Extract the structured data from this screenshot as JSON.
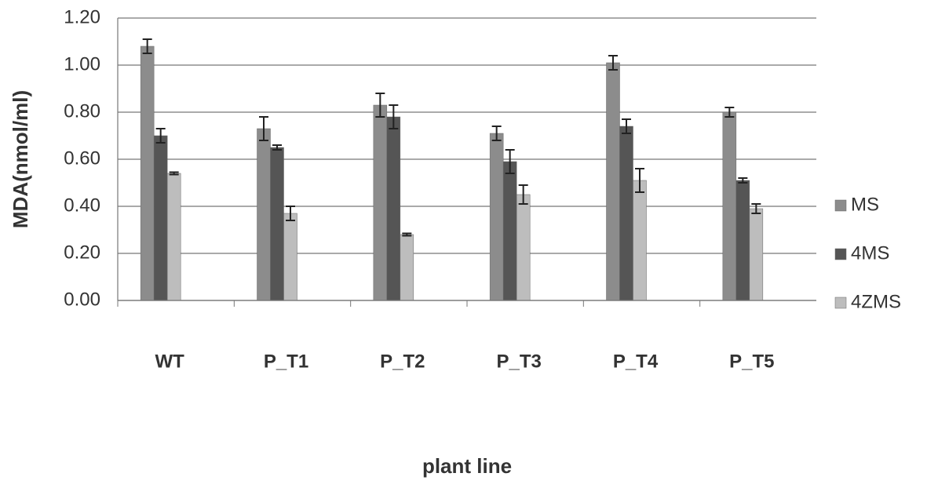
{
  "chart_data": {
    "type": "bar",
    "y_label": "MDA(nmol/ml)",
    "x_label": "plant line",
    "categories": [
      "WT",
      "P_T1",
      "P_T2",
      "P_T3",
      "P_T4",
      "P_T5"
    ],
    "series": [
      {
        "name": "MS",
        "color": "#8c8c8c",
        "values": [
          1.08,
          0.73,
          0.83,
          0.71,
          1.01,
          0.8
        ],
        "errors": [
          0.03,
          0.05,
          0.05,
          0.03,
          0.03,
          0.02
        ]
      },
      {
        "name": "4MS",
        "color": "#555555",
        "values": [
          0.7,
          0.65,
          0.78,
          0.59,
          0.74,
          0.51
        ],
        "errors": [
          0.03,
          0.01,
          0.05,
          0.05,
          0.03,
          0.01
        ]
      },
      {
        "name": "4ZMS",
        "color": "#bdbdbd",
        "values": [
          0.54,
          0.37,
          0.28,
          0.45,
          0.51,
          0.39
        ],
        "errors": [
          0.005,
          0.03,
          0.005,
          0.04,
          0.05,
          0.02
        ]
      }
    ],
    "ylim": [
      0,
      1.2
    ],
    "yticks": [
      {
        "value": 0,
        "label": "0.00"
      },
      {
        "value": 0.2,
        "label": "0.20"
      },
      {
        "value": 0.4,
        "label": "0.40"
      },
      {
        "value": 0.6,
        "label": "0.60"
      },
      {
        "value": 0.8,
        "label": "0.80"
      },
      {
        "value": 1.0,
        "label": "1.00"
      },
      {
        "value": 1.2,
        "label": "1.20"
      }
    ],
    "grid": true,
    "legend": "right"
  }
}
